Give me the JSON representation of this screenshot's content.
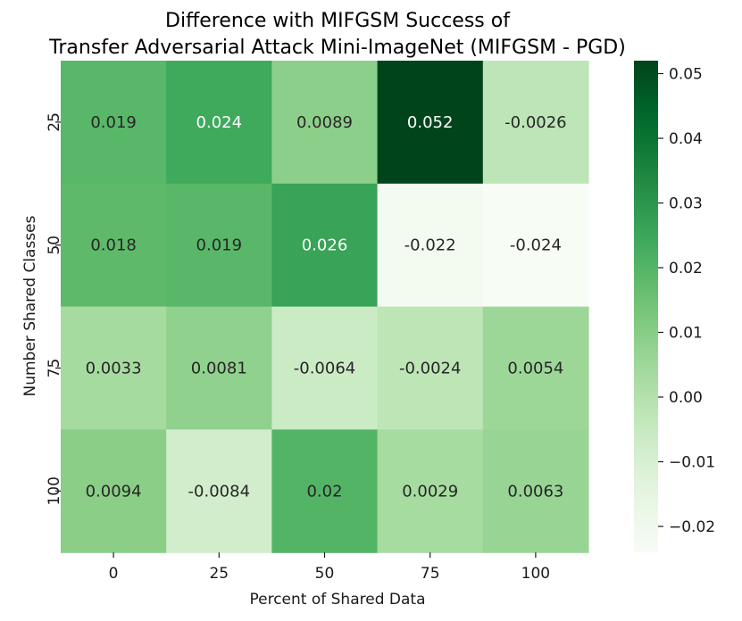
{
  "chart_data": {
    "type": "heatmap",
    "title_line1": "Difference with MIFGSM Success of",
    "title_line2": "Transfer Adversarial Attack Mini-ImageNet (MIFGSM - PGD)",
    "xlabel": "Percent of Shared Data",
    "ylabel": "Number Shared Classes",
    "x_categories": [
      "0",
      "25",
      "50",
      "75",
      "100"
    ],
    "y_categories": [
      "25",
      "50",
      "75",
      "100"
    ],
    "values": [
      [
        0.019,
        0.024,
        0.0089,
        0.052,
        -0.0026
      ],
      [
        0.018,
        0.019,
        0.026,
        -0.022,
        -0.024
      ],
      [
        0.0033,
        0.0081,
        -0.0064,
        -0.0024,
        0.0054
      ],
      [
        0.0094,
        -0.0084,
        0.02,
        0.0029,
        0.0063
      ]
    ],
    "value_labels": [
      [
        "0.019",
        "0.024",
        "0.0089",
        "0.052",
        "-0.0026"
      ],
      [
        "0.018",
        "0.019",
        "0.026",
        "-0.022",
        "-0.024"
      ],
      [
        "0.0033",
        "0.0081",
        "-0.0064",
        "-0.0024",
        "0.0054"
      ],
      [
        "0.0094",
        "-0.0084",
        "0.02",
        "0.0029",
        "0.0063"
      ]
    ],
    "colorbar": {
      "vmin": -0.024,
      "vmax": 0.052,
      "ticks": [
        0.05,
        0.04,
        0.03,
        0.02,
        0.01,
        0.0,
        -0.01,
        -0.02
      ],
      "tick_labels": [
        "0.05",
        "0.04",
        "0.03",
        "0.02",
        "0.01",
        "0.00",
        "−0.01",
        "−0.02"
      ],
      "colormap": "Greens",
      "color_low": "#f7fcf5",
      "color_high": "#00441b"
    }
  }
}
